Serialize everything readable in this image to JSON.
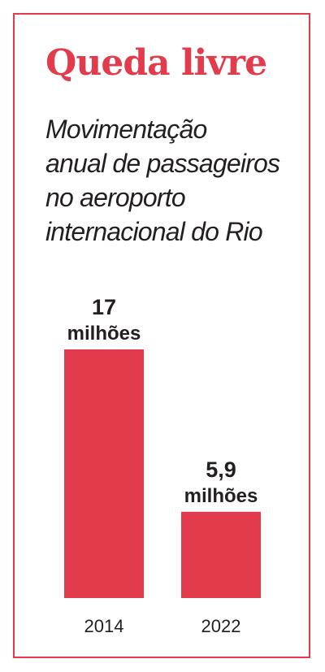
{
  "title": "Queda livre",
  "subtitle_lines": [
    "Movimentação",
    "anual de passageiros",
    "no aeroporto",
    "internacional do Rio"
  ],
  "colors": {
    "accent": "#e23b4c",
    "text": "#231f20"
  },
  "chart_data": {
    "type": "bar",
    "categories": [
      "2014",
      "2022"
    ],
    "values": [
      17,
      5.9
    ],
    "value_labels": [
      {
        "number": "17",
        "unit": "milhões"
      },
      {
        "number": "5,9",
        "unit": "milhões"
      }
    ],
    "title": "Queda livre",
    "subtitle": "Movimentação anual de passageiros no aeroporto internacional do Rio",
    "xlabel": "",
    "ylabel": "",
    "ylim": [
      0,
      17
    ],
    "grid": false,
    "legend": "none"
  }
}
